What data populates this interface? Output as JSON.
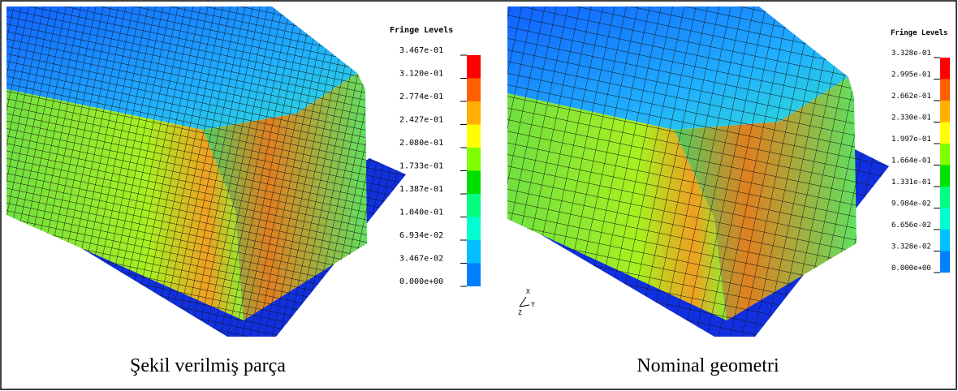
{
  "panels": [
    {
      "legend_title": "Fringe Levels",
      "levels": [
        "3.467e-01",
        "3.120e-01",
        "2.774e-01",
        "2.427e-01",
        "2.080e-01",
        "1.733e-01",
        "1.387e-01",
        "1.040e-01",
        "6.934e-02",
        "3.467e-02",
        "0.000e+00"
      ],
      "caption": "Şekil verilmiş parça"
    },
    {
      "legend_title": "Fringe Levels",
      "levels": [
        "3.328e-01",
        "2.995e-01",
        "2.662e-01",
        "2.330e-01",
        "1.997e-01",
        "1.664e-01",
        "1.331e-01",
        "9.984e-02",
        "6.656e-02",
        "3.328e-02",
        "0.000e+00"
      ],
      "caption": "Nominal geometri",
      "triad": [
        "X",
        "Y",
        "Z"
      ]
    }
  ]
}
